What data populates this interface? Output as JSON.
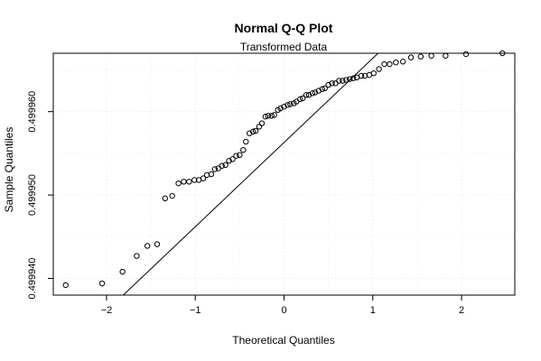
{
  "chart_data": {
    "type": "scatter",
    "title": "Normal Q-Q Plot",
    "subtitle": "Transformed Data",
    "xlabel": "Theoretical Quantiles",
    "ylabel": "Sample Quantiles",
    "xlim": [
      -2.6,
      2.6
    ],
    "ylim": [
      0.499938,
      0.499967
    ],
    "x_ticks": [
      -2,
      -1,
      0,
      1,
      2
    ],
    "x_tick_labels": [
      "−2",
      "−1",
      "0",
      "1",
      "2"
    ],
    "y_ticks": [
      0.49994,
      0.49995,
      0.49996
    ],
    "y_tick_labels": [
      "0.499940",
      "0.499950",
      "0.499960"
    ],
    "grid": true,
    "reference_line": {
      "intercept": 0.4999563,
      "slope": 1.01e-05
    },
    "x": [
      -2.46,
      -2.05,
      -1.82,
      -1.66,
      -1.54,
      -1.43,
      -1.34,
      -1.26,
      -1.19,
      -1.13,
      -1.07,
      -1.01,
      -0.96,
      -0.91,
      -0.87,
      -0.82,
      -0.78,
      -0.74,
      -0.7,
      -0.66,
      -0.62,
      -0.58,
      -0.54,
      -0.5,
      -0.46,
      -0.43,
      -0.39,
      -0.35,
      -0.32,
      -0.28,
      -0.25,
      -0.21,
      -0.18,
      -0.14,
      -0.11,
      -0.07,
      -0.04,
      0.0,
      0.04,
      0.07,
      0.11,
      0.14,
      0.18,
      0.21,
      0.25,
      0.28,
      0.32,
      0.35,
      0.39,
      0.43,
      0.46,
      0.5,
      0.54,
      0.58,
      0.62,
      0.66,
      0.7,
      0.74,
      0.78,
      0.82,
      0.87,
      0.91,
      0.96,
      1.01,
      1.07,
      1.13,
      1.19,
      1.26,
      1.34,
      1.43,
      1.54,
      1.66,
      1.82,
      2.05,
      2.46
    ],
    "y": [
      0.4999392,
      0.4999394,
      0.4999408,
      0.4999427,
      0.4999439,
      0.4999441,
      0.4999496,
      0.4999499,
      0.4999514,
      0.4999516,
      0.4999516,
      0.4999518,
      0.4999518,
      0.499952,
      0.4999524,
      0.4999525,
      0.4999531,
      0.4999532,
      0.4999535,
      0.4999536,
      0.4999541,
      0.4999543,
      0.4999547,
      0.4999548,
      0.4999554,
      0.4999564,
      0.4999574,
      0.4999576,
      0.4999577,
      0.4999582,
      0.4999586,
      0.4999594,
      0.4999595,
      0.4999595,
      0.4999596,
      0.4999602,
      0.4999604,
      0.4999606,
      0.4999608,
      0.4999609,
      0.499961,
      0.4999612,
      0.4999615,
      0.4999616,
      0.499962,
      0.499962,
      0.4999622,
      0.4999623,
      0.4999625,
      0.4999627,
      0.4999628,
      0.4999632,
      0.4999634,
      0.4999634,
      0.4999637,
      0.4999637,
      0.4999638,
      0.4999639,
      0.499964,
      0.4999641,
      0.4999643,
      0.4999643,
      0.4999644,
      0.4999646,
      0.4999651,
      0.4999657,
      0.4999657,
      0.4999659,
      0.499966,
      0.4999665,
      0.4999666,
      0.4999667,
      0.4999667,
      0.4999669,
      0.499967
    ]
  }
}
